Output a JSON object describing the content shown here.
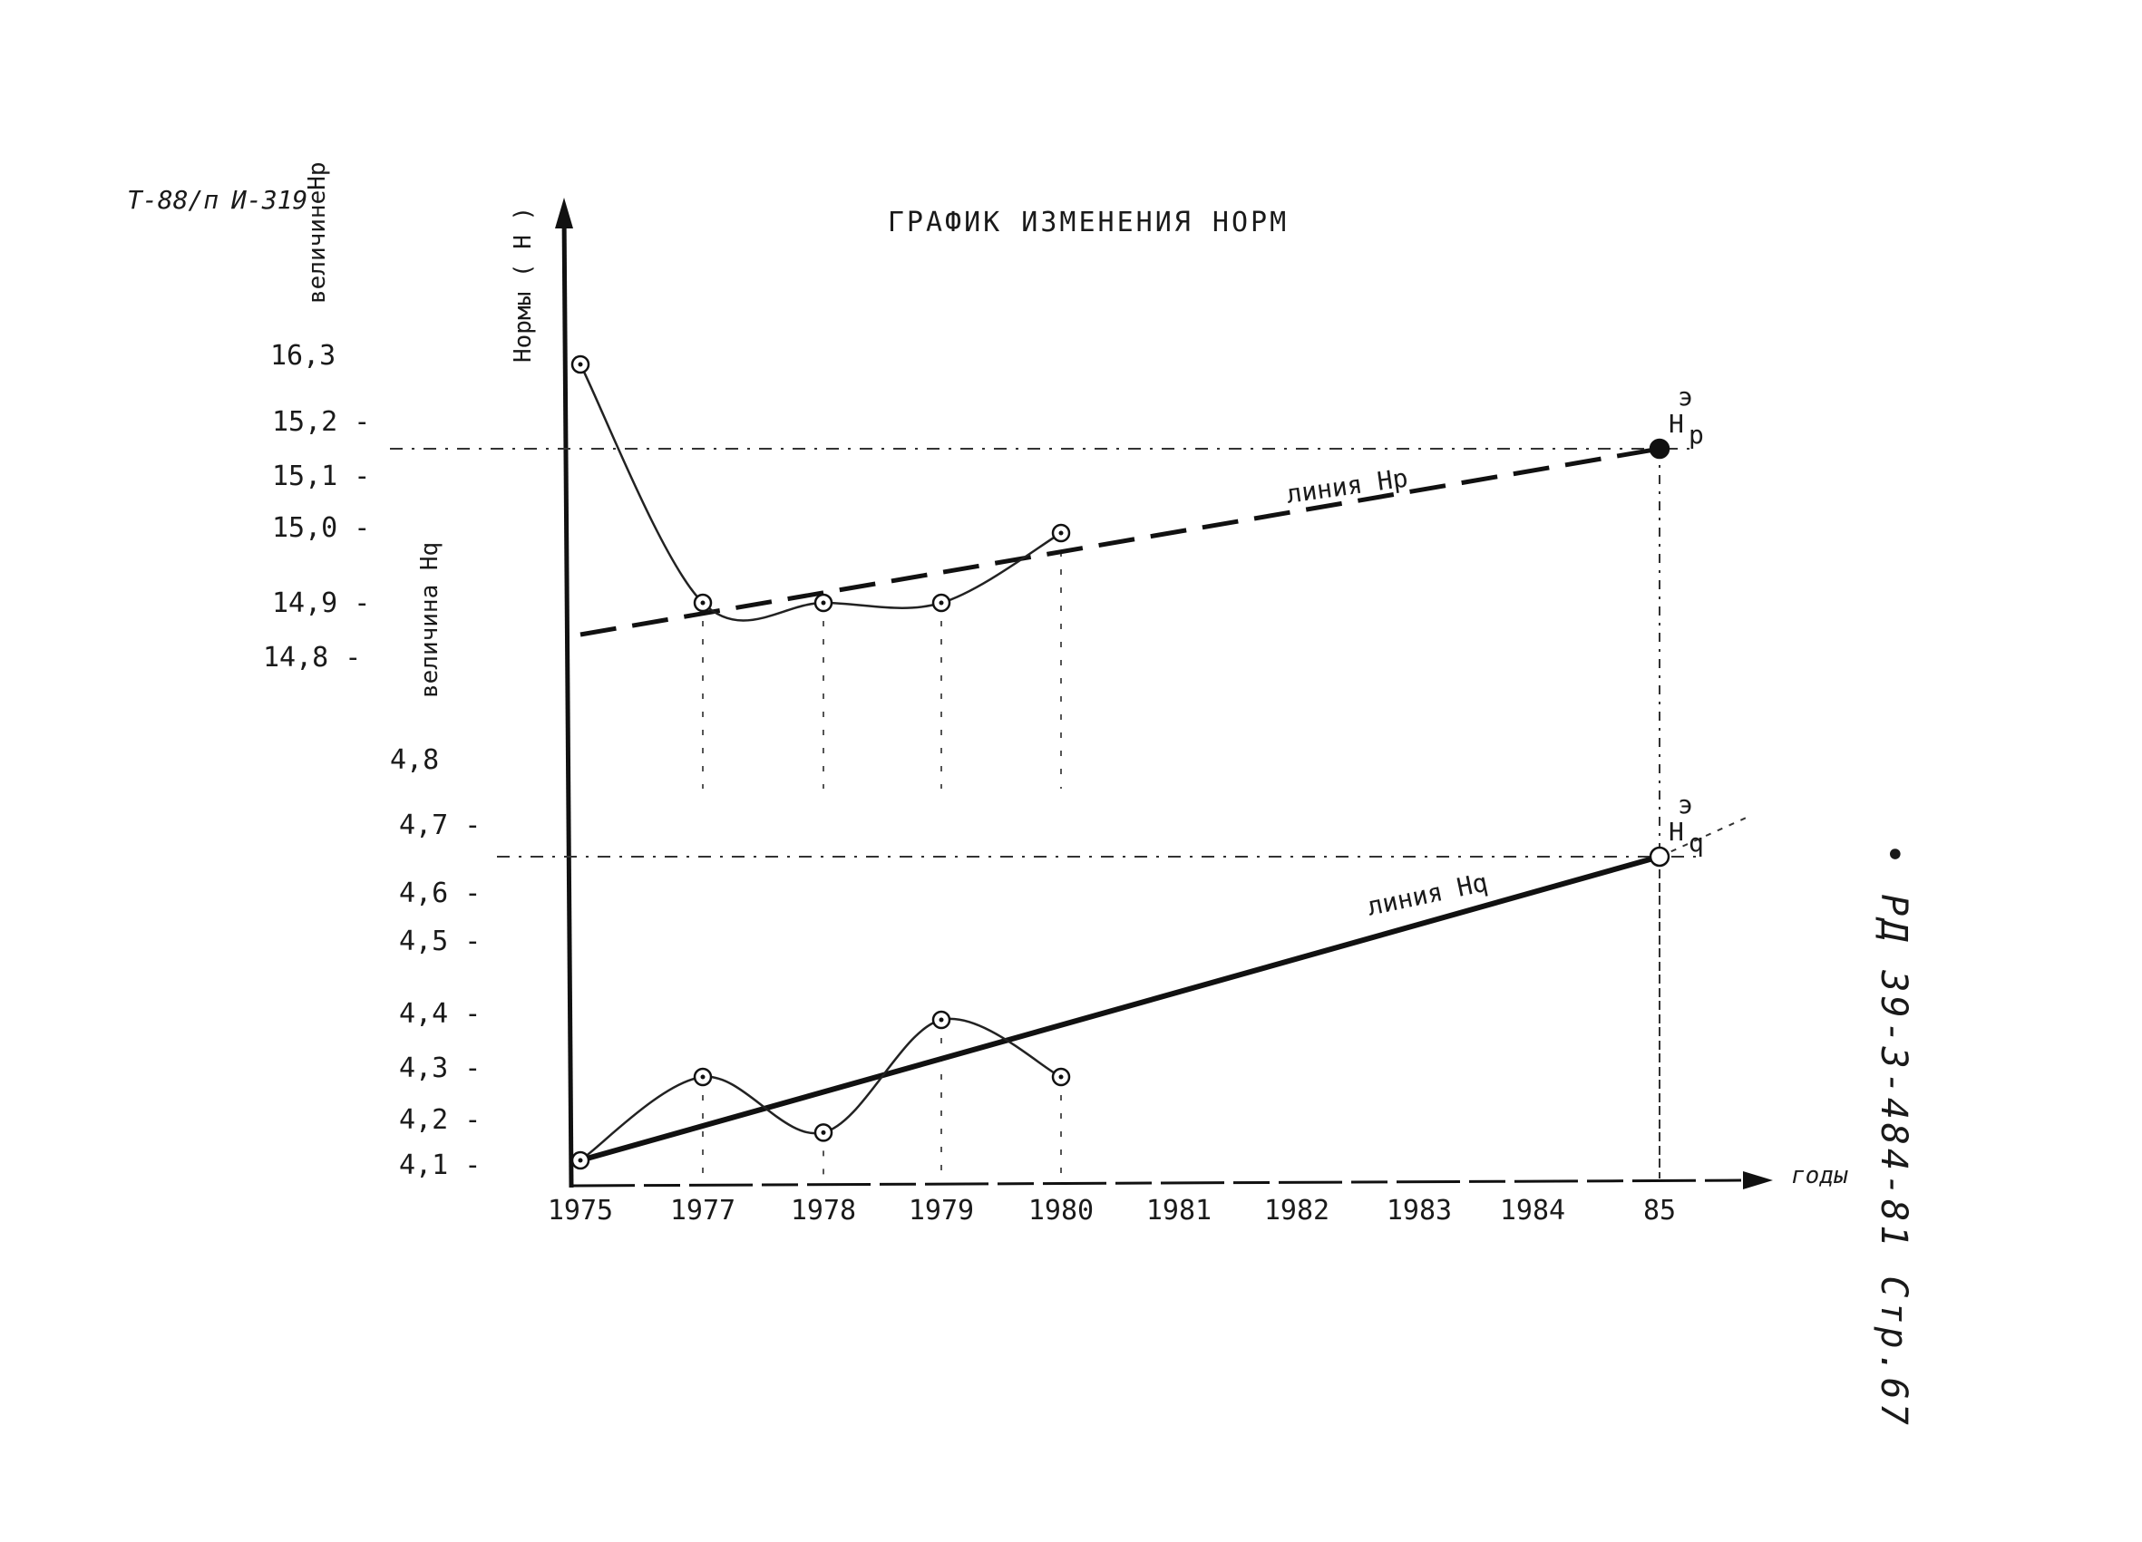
{
  "page": {
    "corner_note": "Т-88/п",
    "corner_note_2": "И-319",
    "side_code": "• РД 39-3-484-81 Стр.67"
  },
  "chart_data": {
    "type": "line",
    "title": "ГРАФИК ИЗМЕНЕНИЯ НОРМ",
    "ylabel": "Нормы ( Н )",
    "xlabel": "годы",
    "x_ticks": [
      "1975",
      "1977",
      "1978",
      "1979",
      "1980",
      "1981",
      "1982",
      "1983",
      "1984",
      "85"
    ],
    "panels": [
      {
        "id": "upper",
        "axis_label": "величинеНр",
        "y_ticks": [
          "16,3",
          "15,2",
          "15,1",
          "15,0",
          "14,9",
          "14,8"
        ],
        "ylim": [
          14.8,
          16.3
        ],
        "actual": {
          "x": [
            1975,
            1977,
            1978,
            1979,
            1980
          ],
          "y": [
            16.3,
            14.9,
            14.9,
            14.9,
            15.0
          ]
        },
        "trend": {
          "label": "линия Нр",
          "x": [
            1975,
            1985
          ],
          "y": [
            14.85,
            15.2
          ]
        },
        "target": {
          "label": "Н",
          "sup": "э",
          "sub": "р",
          "x": 1985,
          "y": 15.2
        }
      },
      {
        "id": "lower",
        "axis_label": "величина Нq",
        "y_ticks": [
          "4,8",
          "4,7",
          "4,6",
          "4,5",
          "4,4",
          "4,3",
          "4,2",
          "4,1"
        ],
        "ylim": [
          4.1,
          4.8
        ],
        "actual": {
          "x": [
            1975,
            1977,
            1978,
            1979,
            1980
          ],
          "y": [
            4.1,
            4.3,
            4.2,
            4.4,
            4.3
          ]
        },
        "trend": {
          "label": "линия Нq",
          "x": [
            1975,
            1985
          ],
          "y": [
            4.15,
            4.7
          ]
        },
        "target": {
          "label": "Н",
          "sup": "э",
          "sub": "q",
          "x": 1985,
          "y": 4.7
        }
      }
    ],
    "grid": false
  }
}
